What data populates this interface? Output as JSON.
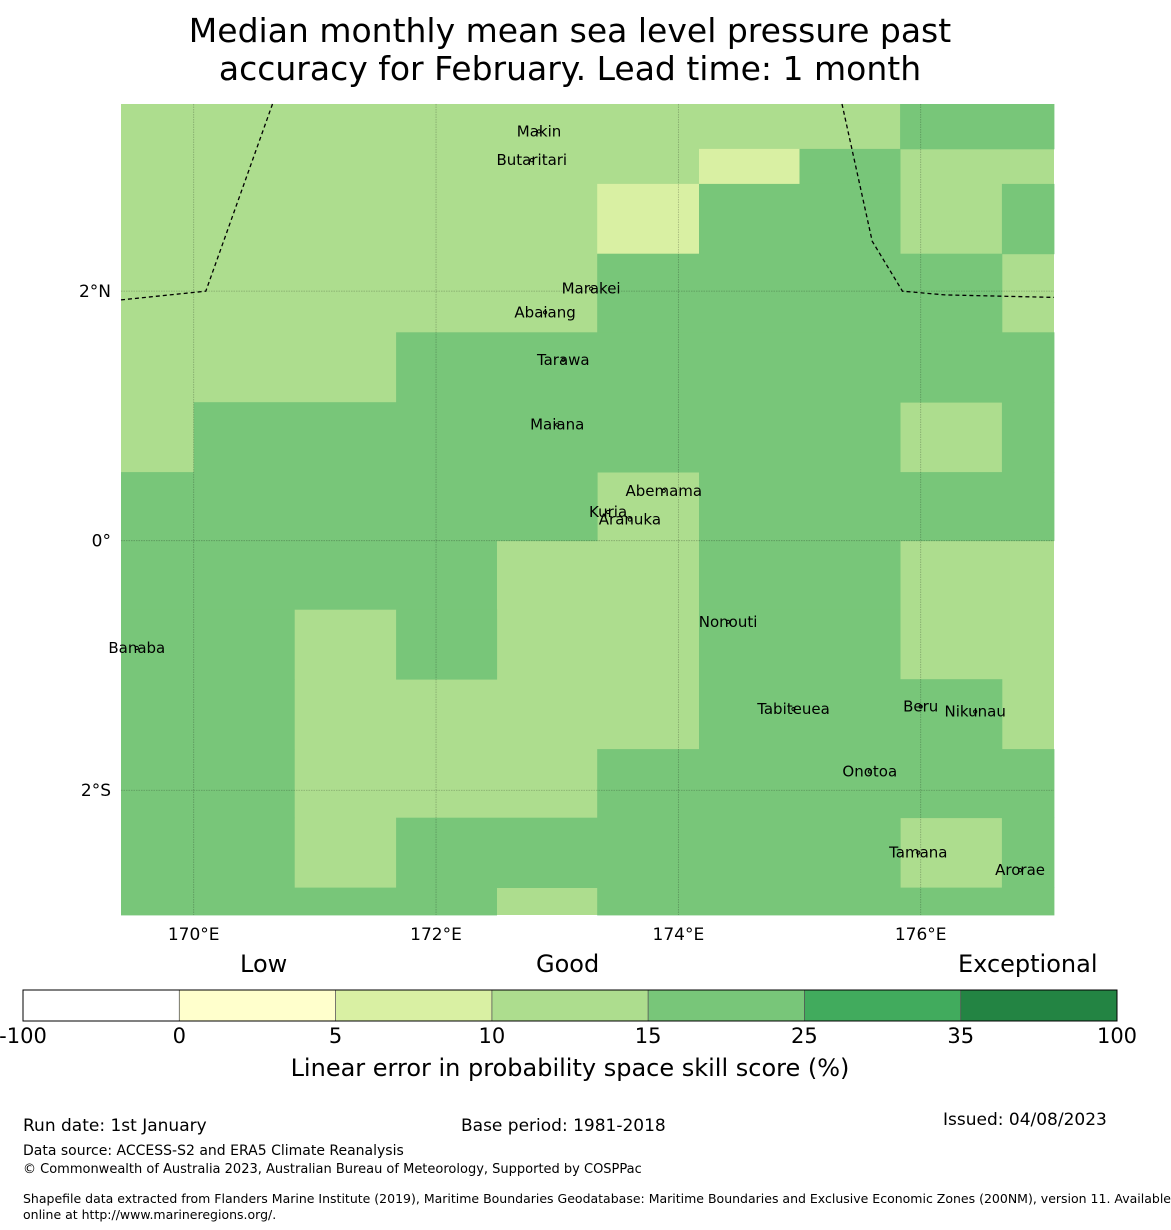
{
  "title_line1": "Median monthly mean sea level pressure past",
  "title_line2": "accuracy for February. Lead time: 1 month",
  "map": {
    "lon_range": [
      169.4,
      177.1
    ],
    "lat_range": [
      -3.0,
      3.5
    ],
    "lon_ticks": [
      {
        "value": 170,
        "label": "170°E"
      },
      {
        "value": 172,
        "label": "172°E"
      },
      {
        "value": 174,
        "label": "174°E"
      },
      {
        "value": 176,
        "label": "176°E"
      }
    ],
    "lat_ticks": [
      {
        "value": 2,
        "label": "2°N"
      },
      {
        "value": 0,
        "label": "0°"
      },
      {
        "value": -2,
        "label": "2°S"
      }
    ],
    "background_category": 3,
    "grid_cells": [
      {
        "lon0": 175.83,
        "lon1": 177.1,
        "lat0": 3.14,
        "lat1": 3.5,
        "category": 4
      },
      {
        "lon0": 174.17,
        "lon1": 175.0,
        "lat0": 2.86,
        "lat1": 3.14,
        "category": 2
      },
      {
        "lon0": 175.0,
        "lon1": 175.83,
        "lat0": 2.86,
        "lat1": 3.14,
        "category": 4
      },
      {
        "lon0": 173.33,
        "lon1": 174.17,
        "lat0": 2.3,
        "lat1": 2.86,
        "category": 2
      },
      {
        "lon0": 174.17,
        "lon1": 175.83,
        "lat0": 2.3,
        "lat1": 2.86,
        "category": 4
      },
      {
        "lon0": 176.67,
        "lon1": 177.1,
        "lat0": 2.3,
        "lat1": 2.86,
        "category": 4
      },
      {
        "lon0": 173.33,
        "lon1": 176.67,
        "lat0": 1.67,
        "lat1": 2.3,
        "category": 4
      },
      {
        "lon0": 171.67,
        "lon1": 177.1,
        "lat0": 1.11,
        "lat1": 1.67,
        "category": 4
      },
      {
        "lon0": 170.0,
        "lon1": 175.83,
        "lat0": 0.55,
        "lat1": 1.11,
        "category": 4
      },
      {
        "lon0": 176.67,
        "lon1": 177.1,
        "lat0": 0.55,
        "lat1": 1.11,
        "category": 4
      },
      {
        "lon0": 169.4,
        "lon1": 173.33,
        "lat0": 0.0,
        "lat1": 0.55,
        "category": 4
      },
      {
        "lon0": 174.17,
        "lon1": 177.1,
        "lat0": 0.0,
        "lat1": 0.55,
        "category": 4
      },
      {
        "lon0": 169.4,
        "lon1": 172.5,
        "lat0": -0.55,
        "lat1": 0.0,
        "category": 4
      },
      {
        "lon0": 174.17,
        "lon1": 175.83,
        "lat0": -0.55,
        "lat1": 0.0,
        "category": 4
      },
      {
        "lon0": 169.4,
        "lon1": 170.83,
        "lat0": -1.11,
        "lat1": -0.55,
        "category": 4
      },
      {
        "lon0": 171.67,
        "lon1": 172.5,
        "lat0": -1.11,
        "lat1": -0.55,
        "category": 4
      },
      {
        "lon0": 174.17,
        "lon1": 175.83,
        "lat0": -1.11,
        "lat1": -0.55,
        "category": 4
      },
      {
        "lon0": 169.4,
        "lon1": 170.83,
        "lat0": -1.67,
        "lat1": -1.11,
        "category": 4
      },
      {
        "lon0": 174.17,
        "lon1": 176.67,
        "lat0": -1.67,
        "lat1": -1.11,
        "category": 4
      },
      {
        "lon0": 169.4,
        "lon1": 170.83,
        "lat0": -2.22,
        "lat1": -1.67,
        "category": 4
      },
      {
        "lon0": 173.33,
        "lon1": 177.1,
        "lat0": -2.22,
        "lat1": -1.67,
        "category": 4
      },
      {
        "lon0": 169.4,
        "lon1": 170.83,
        "lat0": -2.78,
        "lat1": -2.22,
        "category": 4
      },
      {
        "lon0": 171.67,
        "lon1": 175.83,
        "lat0": -2.78,
        "lat1": -2.22,
        "category": 4
      },
      {
        "lon0": 176.67,
        "lon1": 177.1,
        "lat0": -2.78,
        "lat1": -2.22,
        "category": 4
      },
      {
        "lon0": 169.4,
        "lon1": 172.5,
        "lat0": -3.0,
        "lat1": -2.78,
        "category": 4
      },
      {
        "lon0": 173.33,
        "lon1": 177.1,
        "lat0": -3.0,
        "lat1": -2.78,
        "category": 4
      }
    ],
    "boundaries": [
      [
        [
          169.4,
          1.93
        ],
        [
          170.1,
          2.0
        ],
        [
          170.65,
          3.5
        ]
      ],
      [
        [
          175.35,
          3.5
        ],
        [
          175.6,
          2.4
        ],
        [
          175.85,
          2.0
        ],
        [
          176.2,
          1.97
        ],
        [
          177.1,
          1.95
        ]
      ]
    ],
    "islands": [
      {
        "name": "Makin",
        "lon": 172.85,
        "lat": 3.28
      },
      {
        "name": "Butaritari",
        "lon": 172.79,
        "lat": 3.05
      },
      {
        "name": "Marakei",
        "lon": 173.28,
        "lat": 2.02
      },
      {
        "name": "Abaiang",
        "lon": 172.9,
        "lat": 1.83
      },
      {
        "name": "Tarawa",
        "lon": 173.05,
        "lat": 1.45
      },
      {
        "name": "Maiana",
        "lon": 173.0,
        "lat": 0.93
      },
      {
        "name": "Abemama",
        "lon": 173.88,
        "lat": 0.4
      },
      {
        "name": "Kuria",
        "lon": 173.42,
        "lat": 0.23
      },
      {
        "name": "Aranuka",
        "lon": 173.6,
        "lat": 0.17
      },
      {
        "name": "Nonouti",
        "lon": 174.41,
        "lat": -0.65
      },
      {
        "name": "Tabiteuea",
        "lon": 174.95,
        "lat": -1.35
      },
      {
        "name": "Beru",
        "lon": 176.0,
        "lat": -1.33
      },
      {
        "name": "Nikunau",
        "lon": 176.45,
        "lat": -1.37
      },
      {
        "name": "Onotoa",
        "lon": 175.58,
        "lat": -1.85
      },
      {
        "name": "Tamana",
        "lon": 175.98,
        "lat": -2.5
      },
      {
        "name": "Arorae",
        "lon": 176.82,
        "lat": -2.64
      },
      {
        "name": "Banaba",
        "lon": 169.53,
        "lat": -0.86
      }
    ]
  },
  "legend": {
    "label_low": "Low",
    "label_good": "Good",
    "label_exceptional": "Exceptional",
    "colors": [
      "#ffffff",
      "#ffffcc",
      "#d9f0a3",
      "#addd8e",
      "#78c679",
      "#41ab5d",
      "#238443"
    ],
    "ticks": [
      "-100",
      "0",
      "5",
      "10",
      "15",
      "25",
      "35",
      "100"
    ],
    "axis_title": "Linear error in probability space skill score (%)"
  },
  "footer": {
    "run_date": "Run date: 1st January",
    "base_period": "Base period: 1981-2018",
    "issued": "Issued: 04/08/2023",
    "data_source": "Data source: ACCESS-S2 and ERA5 Climate Reanalysis",
    "copyright": "© Commonwealth of Australia 2023, Australian Bureau of Meteorology, Supported by COSPPac",
    "shapefile_line1": "Shapefile data extracted from Flanders Marine Institute (2019), Maritime Boundaries Geodatabase: Maritime Boundaries and Exclusive Economic Zones (200NM), version 11. Available",
    "shapefile_line2": "online at http://www.marineregions.org/."
  }
}
